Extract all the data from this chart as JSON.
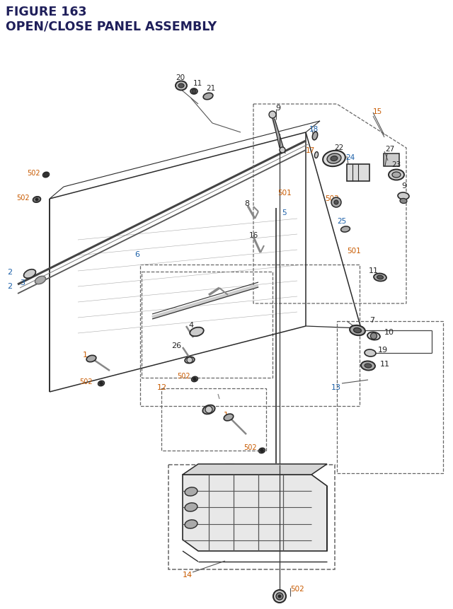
{
  "title_line1": "FIGURE 163",
  "title_line2": "OPEN/CLOSE PANEL ASSEMBLY",
  "title_color": "#1f1f5a",
  "title_fontsize": 12.5,
  "bg_color": "#ffffff",
  "line_color": "#2a2a2a",
  "label_black": "#222222",
  "label_blue": "#1a5fa8",
  "label_orange": "#c85a00",
  "label_teal": "#007777",
  "dash_color": "#666666",
  "part_gray": "#888888",
  "part_light": "#cccccc",
  "part_mid": "#aaaaaa"
}
